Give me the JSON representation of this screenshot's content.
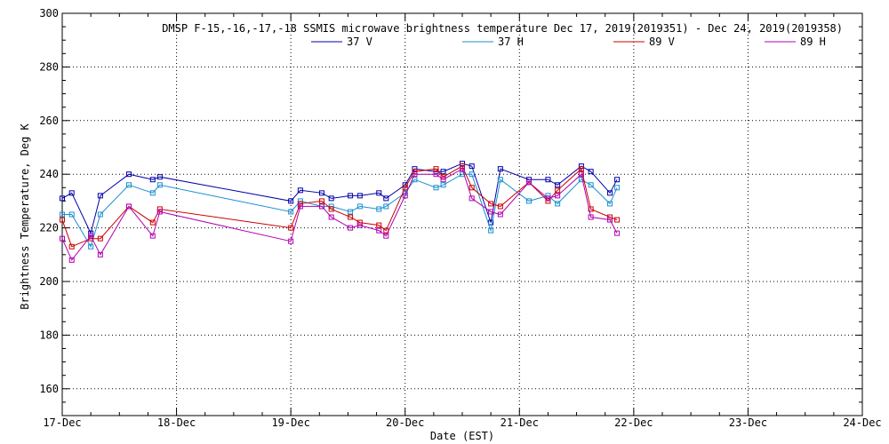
{
  "chart_data": {
    "type": "line",
    "title": "DMSP F-15,-16,-17,-18 SSMIS microwave brightness temperature Dec 17, 2019(2019351) - Dec 24, 2019(2019358)",
    "xlabel": "Date (EST)",
    "ylabel": "Brightness Temperature, Deg K",
    "x_ticks": [
      "17-Dec",
      "18-Dec",
      "19-Dec",
      "20-Dec",
      "21-Dec",
      "22-Dec",
      "23-Dec",
      "24-Dec"
    ],
    "y_ticks": [
      160,
      180,
      200,
      220,
      240,
      260,
      280,
      300
    ],
    "xlim": [
      "2019-12-17 00:00",
      "2019-12-24 00:00"
    ],
    "ylim": [
      150,
      300
    ],
    "grid": true,
    "legend_position": "top-center",
    "x": [
      "2019-12-17 00:00",
      "2019-12-17 02:00",
      "2019-12-17 06:00",
      "2019-12-17 08:00",
      "2019-12-17 14:00",
      "2019-12-17 19:00",
      "2019-12-17 20:30",
      "2019-12-19 00:00",
      "2019-12-19 02:00",
      "2019-12-19 06:30",
      "2019-12-19 08:30",
      "2019-12-19 12:30",
      "2019-12-19 14:30",
      "2019-12-19 18:30",
      "2019-12-19 20:00",
      "2019-12-20 00:00",
      "2019-12-20 02:00",
      "2019-12-20 06:30",
      "2019-12-20 08:00",
      "2019-12-20 12:00",
      "2019-12-20 14:00",
      "2019-12-20 18:00",
      "2019-12-20 20:00",
      "2019-12-21 02:00",
      "2019-12-21 06:00",
      "2019-12-21 08:00",
      "2019-12-21 13:00",
      "2019-12-21 15:00",
      "2019-12-21 19:00",
      "2019-12-21 20:30"
    ],
    "series": [
      {
        "name": "37 V",
        "color": "#0000aa",
        "values": [
          231,
          233,
          218,
          232,
          240,
          238,
          239,
          230,
          234,
          233,
          231,
          232,
          232,
          233,
          231,
          236,
          242,
          241,
          241,
          244,
          243,
          222,
          242,
          238,
          238,
          236,
          243,
          241,
          233,
          238
        ]
      },
      {
        "name": "37 H",
        "color": "#1a8fd0",
        "values": [
          225,
          225,
          213,
          225,
          236,
          233,
          236,
          226,
          230,
          228,
          228,
          226,
          228,
          227,
          228,
          233,
          238,
          235,
          236,
          240,
          240,
          219,
          238,
          230,
          232,
          229,
          238,
          236,
          229,
          235
        ]
      },
      {
        "name": "89 V",
        "color": "#cc0000",
        "values": [
          223,
          213,
          216,
          216,
          228,
          222,
          227,
          220,
          229,
          230,
          227,
          224,
          222,
          221,
          219,
          235,
          241,
          242,
          239,
          243,
          235,
          229,
          228,
          237,
          230,
          234,
          242,
          227,
          224,
          223
        ]
      },
      {
        "name": "89 H",
        "color": "#b000b0",
        "values": [
          216,
          208,
          217,
          210,
          228,
          217,
          226,
          215,
          228,
          228,
          224,
          220,
          221,
          219,
          217,
          232,
          240,
          240,
          238,
          242,
          231,
          226,
          225,
          237,
          231,
          232,
          240,
          224,
          223,
          218
        ]
      }
    ]
  }
}
